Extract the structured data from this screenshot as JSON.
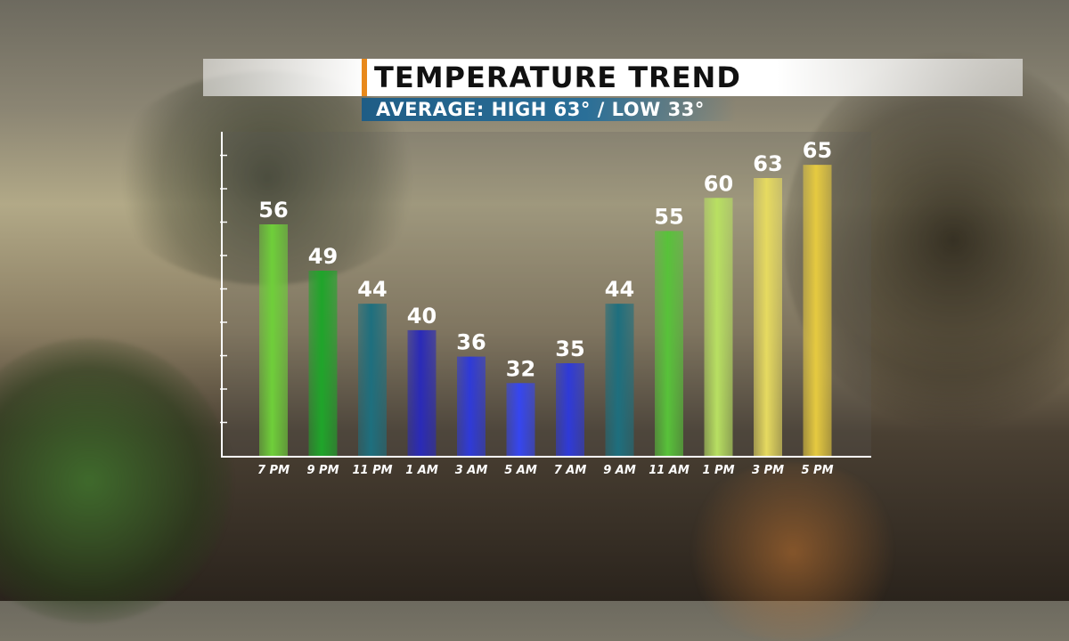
{
  "header": {
    "title": "TEMPERATURE TREND",
    "subtitle": "AVERAGE:  HIGH  63° / LOW  33°"
  },
  "colors": {
    "title_accent": "#e8891c",
    "subtitle_band": "#2a6f98",
    "axis": "#ffffff"
  },
  "chart_data": {
    "type": "bar",
    "categories": [
      "7 PM",
      "9 PM",
      "11 PM",
      "1 AM",
      "3 AM",
      "5 AM",
      "7 AM",
      "9 AM",
      "11 AM",
      "1 PM",
      "3 PM",
      "5 PM"
    ],
    "values": [
      56,
      49,
      44,
      40,
      36,
      32,
      35,
      44,
      55,
      60,
      63,
      65
    ],
    "bar_colors": [
      "#6fcf3a",
      "#1fa52a",
      "#1e6f7e",
      "#2a2ab8",
      "#2f3ad8",
      "#3646f0",
      "#2f3ad8",
      "#1e6f7e",
      "#58c23a",
      "#b8e062",
      "#e6da60",
      "#e6ca40"
    ],
    "title": "TEMPERATURE TREND",
    "xlabel": "",
    "ylabel": "",
    "ylim": [
      21,
      70
    ],
    "grid": false,
    "data_labels": true
  }
}
